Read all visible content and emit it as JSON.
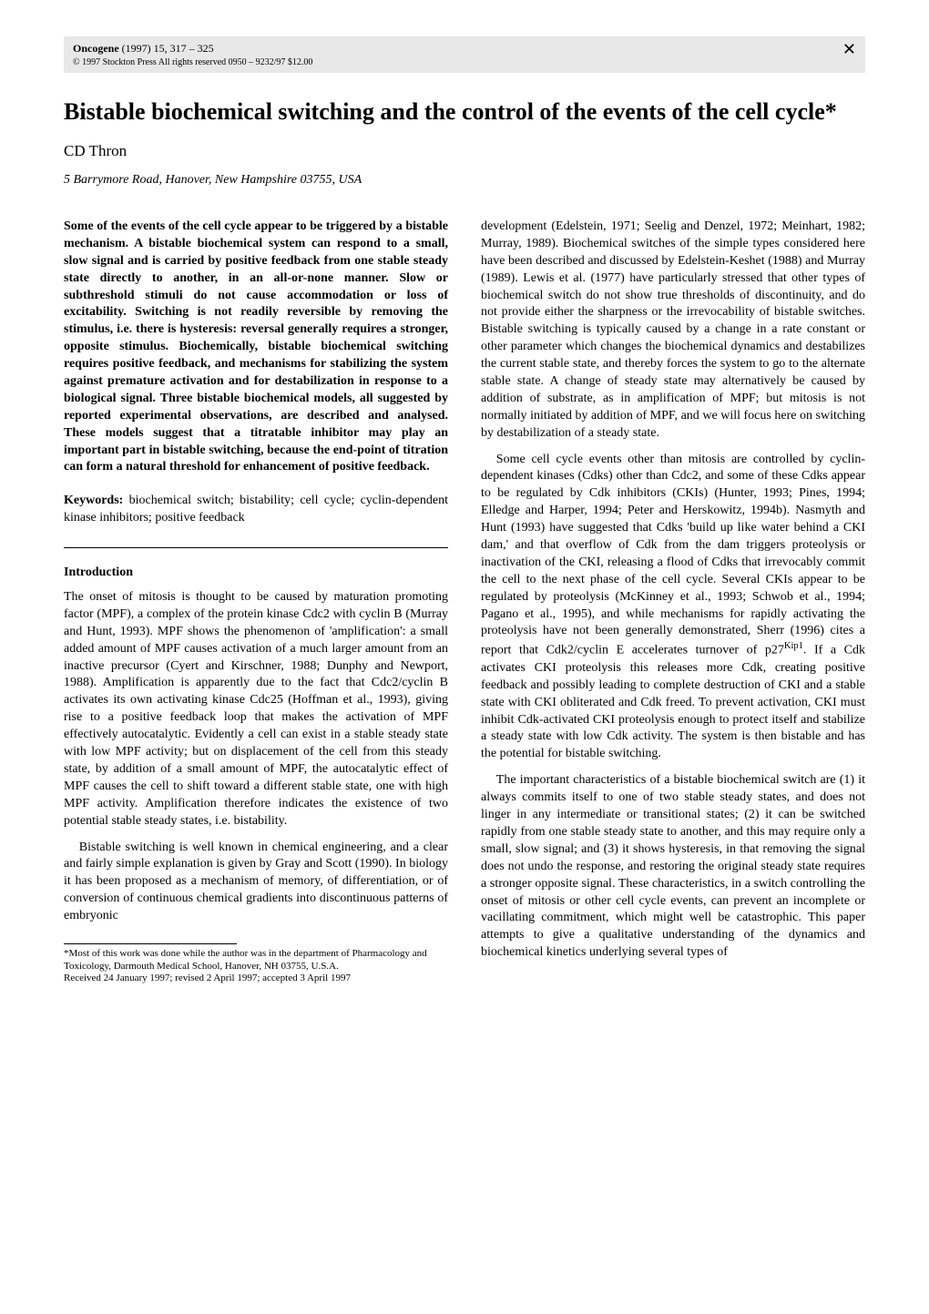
{
  "header": {
    "journal_name": "Oncogene",
    "journal_year_vol": "(1997) 15,",
    "journal_pages": "317 – 325",
    "copyright": "© 1997 Stockton Press   All rights reserved 0950 – 9232/97 $12.00",
    "logo_glyph": "✕"
  },
  "title": "Bistable biochemical switching and the control of the events of the cell cycle*",
  "author": "CD Thron",
  "affiliation": "5 Barrymore Road, Hanover, New Hampshire 03755, USA",
  "abstract": "Some of the events of the cell cycle appear to be triggered by a bistable mechanism. A bistable biochemical system can respond to a small, slow signal and is carried by positive feedback from one stable steady state directly to another, in an all-or-none manner. Slow or subthreshold stimuli do not cause accommodation or loss of excitability. Switching is not readily reversible by removing the stimulus, i.e. there is hysteresis: reversal generally requires a stronger, opposite stimulus. Biochemically, bistable biochemical switching requires positive feedback, and mechanisms for stabilizing the system against premature activation and for destabilization in response to a biological signal. Three bistable biochemical models, all suggested by reported experimental observations, are described and analysed. These models suggest that a titratable inhibitor may play an important part in bistable switching, because the end-point of titration can form a natural threshold for enhancement of positive feedback.",
  "keywords_label": "Keywords:",
  "keywords_text": " biochemical switch; bistability; cell cycle; cyclin-dependent kinase inhibitors; positive feedback",
  "intro_head": "Introduction",
  "intro_p1": "The onset of mitosis is thought to be caused by maturation promoting factor (MPF), a complex of the protein kinase Cdc2 with cyclin B (Murray and Hunt, 1993). MPF shows the phenomenon of 'amplification': a small added amount of MPF causes activation of a much larger amount from an inactive precursor (Cyert and Kirschner, 1988; Dunphy and Newport, 1988). Amplification is apparently due to the fact that Cdc2/cyclin B activates its own activating kinase Cdc25 (Hoffman et al., 1993), giving rise to a positive feedback loop that makes the activation of MPF effectively autocatalytic. Evidently a cell can exist in a stable steady state with low MPF activity; but on displacement of the cell from this steady state, by addition of a small amount of MPF, the autocatalytic effect of MPF causes the cell to shift toward a different stable state, one with high MPF activity. Amplification therefore indicates the existence of two potential stable steady states, i.e. bistability.",
  "intro_p2": "Bistable switching is well known in chemical engineering, and a clear and fairly simple explanation is given by Gray and Scott (1990). In biology it has been proposed as a mechanism of memory, of differentiation, or of conversion of continuous chemical gradients into discontinuous patterns of embryonic",
  "footnote1": "*Most of this work was done while the author was in the department of Pharmacology and Toxicology, Darmouth Medical School, Hanover, NH 03755, U.S.A.",
  "footnote2": "Received 24 January 1997; revised 2 April 1997; accepted 3 April 1997",
  "col2_p1": "development (Edelstein, 1971; Seelig and Denzel, 1972; Meinhart, 1982; Murray, 1989). Biochemical switches of the simple types considered here have been described and discussed by Edelstein-Keshet (1988) and Murray (1989). Lewis et al. (1977) have particularly stressed that other types of biochemical switch do not show true thresholds of discontinuity, and do not provide either the sharpness or the irrevocability of bistable switches. Bistable switching is typically caused by a change in a rate constant or other parameter which changes the biochemical dynamics and destabilizes the current stable state, and thereby forces the system to go to the alternate stable state. A change of steady state may alternatively be caused by addition of substrate, as in amplification of MPF; but mitosis is not normally initiated by addition of MPF, and we will focus here on switching by destabilization of a steady state.",
  "col2_p2a": "Some cell cycle events other than mitosis are controlled by cyclin-dependent kinases (Cdks) other than Cdc2, and some of these Cdks appear to be regulated by Cdk inhibitors (CKIs) (Hunter, 1993; Pines, 1994; Elledge and Harper, 1994; Peter and Herskowitz, 1994b). Nasmyth and Hunt (1993) have suggested that Cdks 'build up like water behind a CKI dam,' and that overflow of Cdk from the dam triggers proteolysis or inactivation of the CKI, releasing a flood of Cdks that irrevocably commit the cell to the next phase of the cell cycle. Several CKIs appear to be regulated by proteolysis (McKinney et al., 1993; Schwob et al., 1994; Pagano et al., 1995), and while mechanisms for rapidly activating the proteolysis have not been generally demonstrated, Sherr (1996) cites a report that Cdk2/cyclin E accelerates turnover of p27",
  "col2_p2_sup": "Kip1",
  "col2_p2b": ". If a Cdk activates CKI proteolysis this releases more Cdk, creating positive feedback and possibly leading to complete destruction of CKI and a stable state with CKI obliterated and Cdk freed. To prevent activation, CKI must inhibit Cdk-activated CKI proteolysis enough to protect itself and stabilize a steady state with low Cdk activity. The system is then bistable and has the potential for bistable switching.",
  "col2_p3": "The important characteristics of a bistable biochemical switch are (1) it always commits itself to one of two stable steady states, and does not linger in any intermediate or transitional states; (2) it can be switched rapidly from one stable steady state to another, and this may require only a small, slow signal; and (3) it shows hysteresis, in that removing the signal does not undo the response, and restoring the original steady state requires a stronger opposite signal. These characteristics, in a switch controlling the onset of mitosis or other cell cycle events, can prevent an incomplete or vacillating commitment, which might well be catastrophic. This paper attempts to give a qualitative understanding of the dynamics and biochemical kinetics underlying several types of"
}
